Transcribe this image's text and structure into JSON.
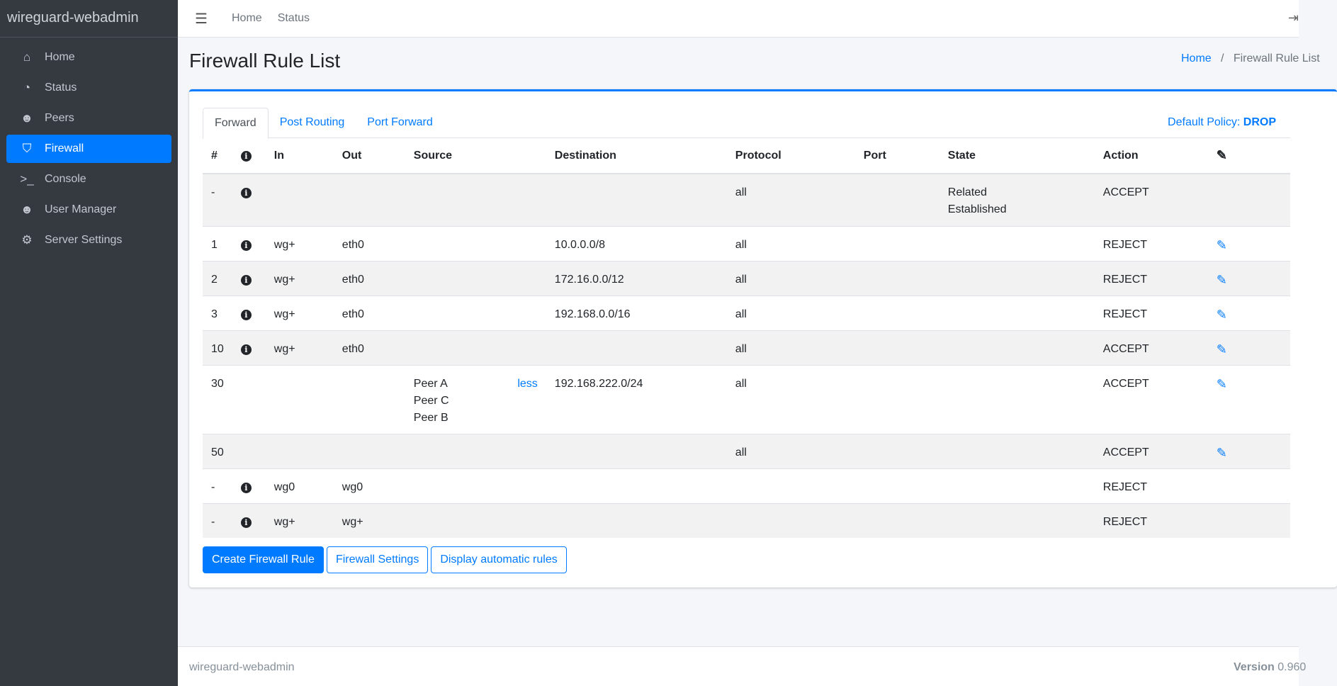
{
  "app": {
    "brand": "wireguard-webadmin"
  },
  "sidebar": {
    "items": [
      {
        "label": "Home",
        "icon": "home-icon",
        "glyph": "⌂"
      },
      {
        "label": "Status",
        "icon": "dashboard-icon",
        "glyph": "◔"
      },
      {
        "label": "Peers",
        "icon": "users-icon",
        "glyph": "☻"
      },
      {
        "label": "Firewall",
        "icon": "shield-icon",
        "glyph": "⛉"
      },
      {
        "label": "Console",
        "icon": "terminal-icon",
        "glyph": ">_"
      },
      {
        "label": "User Manager",
        "icon": "users-icon",
        "glyph": "☻"
      },
      {
        "label": "Server Settings",
        "icon": "gears-icon",
        "glyph": "⚙"
      }
    ]
  },
  "topbar": {
    "links": [
      "Home",
      "Status"
    ]
  },
  "page": {
    "title": "Firewall Rule List",
    "breadcrumb": [
      "Home",
      "Firewall Rule List"
    ]
  },
  "tabs": [
    "Forward",
    "Post Routing",
    "Port Forward"
  ],
  "policy": {
    "label": "Default Policy:",
    "value": "DROP"
  },
  "table": {
    "headers": [
      "#",
      "",
      "In",
      "Out",
      "Source",
      "Destination",
      "Protocol",
      "Port",
      "State",
      "Action"
    ],
    "rows": [
      {
        "n": "-",
        "info": true,
        "in": "",
        "out": "",
        "source": [],
        "less": "",
        "dest": "",
        "proto": "all",
        "port": "",
        "state": [
          "Related",
          "Established"
        ],
        "action": "ACCEPT",
        "edit": false
      },
      {
        "n": "1",
        "info": true,
        "in": "wg+",
        "out": "eth0",
        "source": [],
        "less": "",
        "dest": "10.0.0.0/8",
        "proto": "all",
        "port": "",
        "state": [],
        "action": "REJECT",
        "edit": true
      },
      {
        "n": "2",
        "info": true,
        "in": "wg+",
        "out": "eth0",
        "source": [],
        "less": "",
        "dest": "172.16.0.0/12",
        "proto": "all",
        "port": "",
        "state": [],
        "action": "REJECT",
        "edit": true
      },
      {
        "n": "3",
        "info": true,
        "in": "wg+",
        "out": "eth0",
        "source": [],
        "less": "",
        "dest": "192.168.0.0/16",
        "proto": "all",
        "port": "",
        "state": [],
        "action": "REJECT",
        "edit": true
      },
      {
        "n": "10",
        "info": true,
        "in": "wg+",
        "out": "eth0",
        "source": [],
        "less": "",
        "dest": "",
        "proto": "all",
        "port": "",
        "state": [],
        "action": "ACCEPT",
        "edit": true
      },
      {
        "n": "30",
        "info": false,
        "in": "",
        "out": "",
        "source": [
          "Peer A",
          "Peer C",
          "Peer B"
        ],
        "less": "less",
        "dest": "192.168.222.0/24",
        "proto": "all",
        "port": "",
        "state": [],
        "action": "ACCEPT",
        "edit": true
      },
      {
        "n": "50",
        "info": false,
        "in": "",
        "out": "",
        "source": [],
        "less": "",
        "dest": "",
        "proto": "all",
        "port": "",
        "state": [],
        "action": "ACCEPT",
        "edit": true
      },
      {
        "n": "-",
        "info": true,
        "in": "wg0",
        "out": "wg0",
        "source": [],
        "less": "",
        "dest": "",
        "proto": "",
        "port": "",
        "state": [],
        "action": "REJECT",
        "edit": false
      },
      {
        "n": "-",
        "info": true,
        "in": "wg+",
        "out": "wg+",
        "source": [],
        "less": "",
        "dest": "",
        "proto": "",
        "port": "",
        "state": [],
        "action": "REJECT",
        "edit": false
      }
    ]
  },
  "buttons": {
    "create": "Create Firewall Rule",
    "settings": "Firewall Settings",
    "auto": "Display automatic rules"
  },
  "footer": {
    "left": "wireguard-webadmin",
    "version_label": "Version",
    "version": "0.960"
  },
  "colors": {
    "accent": "#007bff",
    "sidebar": "#343a40"
  }
}
